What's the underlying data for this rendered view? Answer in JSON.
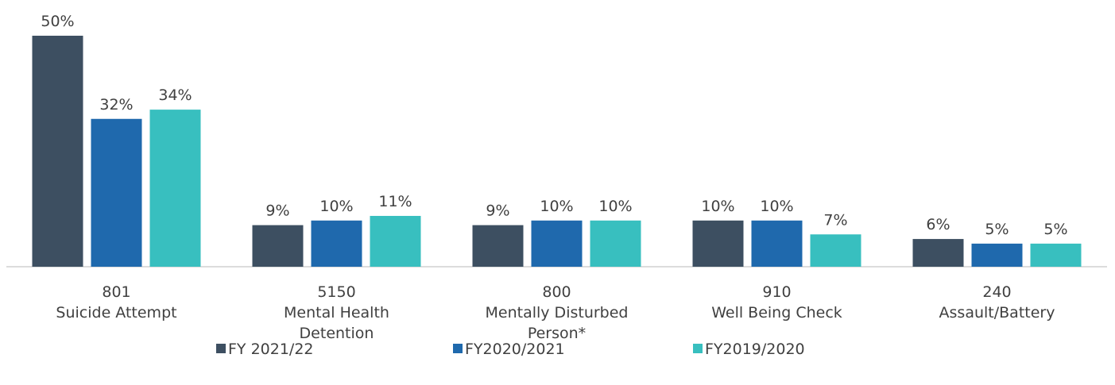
{
  "chart_data": {
    "type": "bar",
    "categories": [
      [
        "801",
        "Suicide Attempt"
      ],
      [
        "5150",
        "Mental Health",
        "Detention"
      ],
      [
        "800",
        "Mentally Disturbed",
        "Person*"
      ],
      [
        "910",
        "Well Being Check"
      ],
      [
        "240",
        "Assault/Battery"
      ]
    ],
    "series": [
      {
        "name": "FY 2021/22",
        "color": "#3d4f61",
        "values": [
          50,
          9,
          9,
          10,
          6
        ],
        "value_labels": [
          "50%",
          "9%",
          "9%",
          "10%",
          "6%"
        ]
      },
      {
        "name": "FY2020/2021",
        "color": "#1f69ad",
        "values": [
          32,
          10,
          10,
          10,
          5
        ],
        "value_labels": [
          "32%",
          "10%",
          "10%",
          "10%",
          "5%"
        ]
      },
      {
        "name": "FY2019/2020",
        "color": "#38bfbf",
        "values": [
          34,
          11,
          10,
          7,
          5
        ],
        "value_labels": [
          "34%",
          "11%",
          "10%",
          "7%",
          "5%"
        ]
      }
    ],
    "legend": "bottom"
  }
}
